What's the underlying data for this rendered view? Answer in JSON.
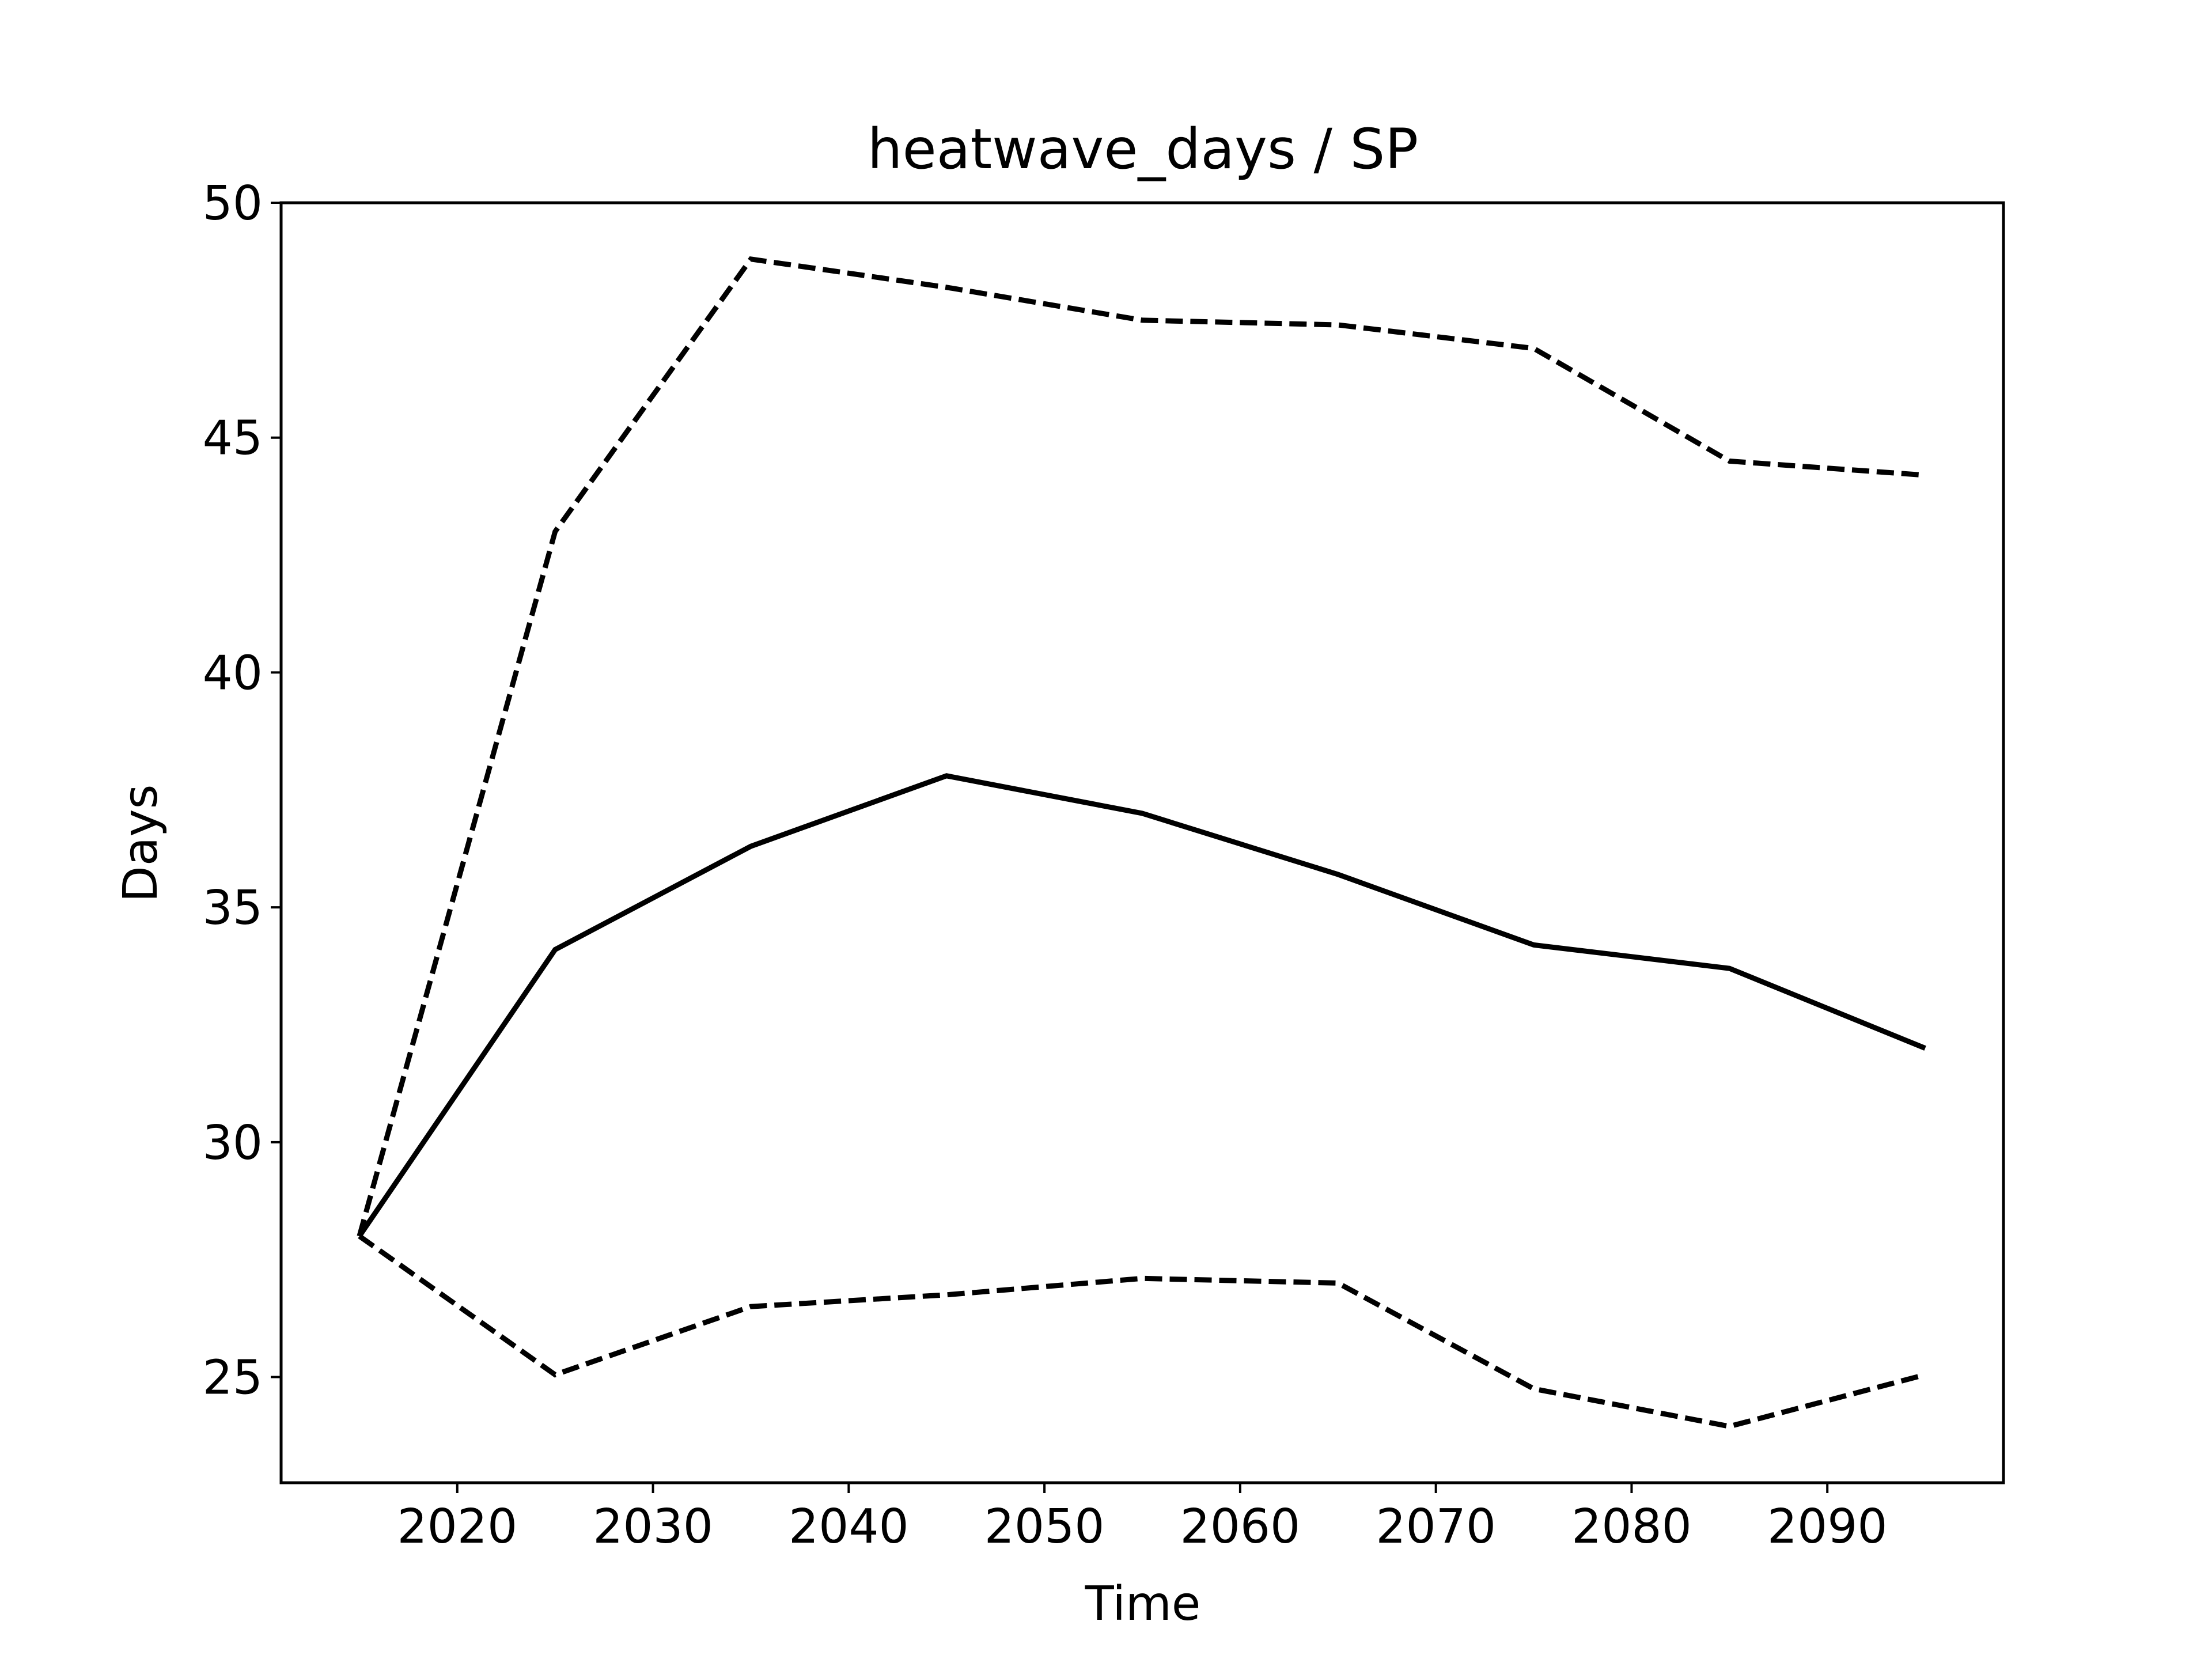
{
  "chart_data": {
    "type": "line",
    "title": "heatwave_days / SP",
    "xlabel": "Time",
    "ylabel": "Days",
    "xlim": [
      2011,
      2099
    ],
    "ylim": [
      22.75,
      50
    ],
    "xticks": [
      2020,
      2030,
      2040,
      2050,
      2060,
      2070,
      2080,
      2090
    ],
    "yticks": [
      25,
      30,
      35,
      40,
      45,
      50
    ],
    "grid": false,
    "legend": "none",
    "x": [
      2015,
      2025,
      2035,
      2045,
      2055,
      2065,
      2075,
      2085,
      2095
    ],
    "series": [
      {
        "style": "solid",
        "color": "#000000",
        "values": [
          28.0,
          34.1,
          36.3,
          37.8,
          37.0,
          35.7,
          34.2,
          33.7,
          32.0
        ]
      },
      {
        "style": "dashed",
        "color": "#000000",
        "values": [
          28.0,
          43.0,
          48.8,
          48.2,
          47.5,
          47.4,
          46.9,
          44.5,
          44.2
        ]
      },
      {
        "style": "dashed",
        "color": "#000000",
        "values": [
          28.0,
          25.05,
          26.5,
          26.75,
          27.1,
          27.0,
          24.75,
          23.95,
          25.05
        ]
      }
    ]
  }
}
